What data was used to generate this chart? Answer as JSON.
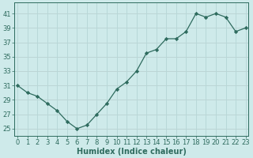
{
  "x": [
    0,
    1,
    2,
    3,
    4,
    5,
    6,
    7,
    8,
    9,
    10,
    11,
    12,
    13,
    14,
    15,
    16,
    17,
    18,
    19,
    20,
    21,
    22,
    23
  ],
  "y": [
    31,
    30,
    29.5,
    28.5,
    27.5,
    26,
    25,
    25.5,
    27,
    28.5,
    30.5,
    31.5,
    33,
    35.5,
    36,
    37.5,
    37.5,
    38.5,
    41,
    40.5,
    41,
    40.5,
    38.5,
    39
  ],
  "line_color": "#2e6b5e",
  "marker": "D",
  "marker_size": 2.2,
  "bg_color": "#ceeaea",
  "grid_color_major": "#b8d8d8",
  "grid_color_minor": "#d4ecec",
  "tick_color": "#2e6b5e",
  "xlabel": "Humidex (Indice chaleur)",
  "xlabel_fontsize": 7,
  "ytick_labels": [
    "25",
    "27",
    "29",
    "31",
    "33",
    "35",
    "37",
    "39",
    "41"
  ],
  "ytick_vals": [
    25,
    27,
    29,
    31,
    33,
    35,
    37,
    39,
    41
  ],
  "xtick_vals": [
    0,
    1,
    2,
    3,
    4,
    5,
    6,
    7,
    8,
    9,
    10,
    11,
    12,
    13,
    14,
    15,
    16,
    17,
    18,
    19,
    20,
    21,
    22,
    23
  ],
  "xlim": [
    -0.3,
    23.3
  ],
  "ylim": [
    24.0,
    42.5
  ],
  "tick_fontsize": 6,
  "linewidth": 0.9
}
